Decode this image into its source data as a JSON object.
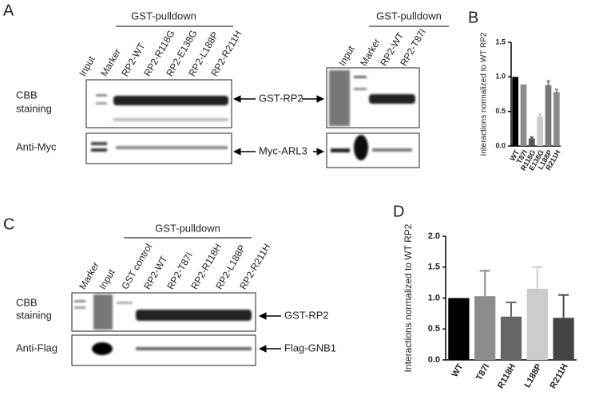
{
  "panel_a": {
    "label": "A",
    "pulldown_left": "GST-pulldown",
    "lanes_left": [
      "Input",
      "Marker",
      "RP2-WT",
      "RP2-R118G",
      "RP2-E138G",
      "RP2-L188P",
      "RP2-R211H"
    ],
    "pulldown_right": "GST-pulldown",
    "lanes_right": [
      "Input",
      "Marker",
      "RP2-WT",
      "RP2-T87I"
    ],
    "row_labels": [
      [
        "CBB",
        "staining"
      ],
      [
        "Anti-Myc"
      ]
    ],
    "band_labels": [
      "GST-RP2",
      "Myc-ARL3"
    ]
  },
  "panel_c": {
    "label": "C",
    "pulldown": "GST-pulldown",
    "lanes": [
      "Marker",
      "Input",
      "GST control",
      "RP2-WT",
      "RP2-T87I",
      "RP2-R118H",
      "RP2-L188P",
      "RP2-R211H"
    ],
    "row_labels": [
      [
        "CBB",
        "staining"
      ],
      [
        "Anti-Flag"
      ]
    ],
    "band_labels": [
      "GST-RP2",
      "Flag-GNB1"
    ]
  },
  "chart_data": [
    {
      "type": "bar",
      "title": "B",
      "y_label": "Interactions normalized to WT RP2",
      "categories": [
        "WT",
        "T87I",
        "R118G",
        "E138G",
        "L188P",
        "R211H"
      ],
      "values": [
        1.0,
        0.89,
        0.11,
        0.43,
        0.88,
        0.78
      ],
      "errors": [
        null,
        null,
        0.02,
        0.03,
        0.06,
        0.04
      ],
      "colors": [
        "#000000",
        "#8c8c8c",
        "#555555",
        "#cccccc",
        "#777777",
        "#8a8a8a"
      ],
      "ylim": [
        0,
        1.5
      ],
      "yticks": [
        {
          "value": 0,
          "label": "0.0"
        },
        {
          "value": 0.5,
          "label": "0.5"
        },
        {
          "value": 1,
          "label": "1.0"
        },
        {
          "value": 1.5,
          "label": "1.5"
        }
      ]
    },
    {
      "type": "bar",
      "title": "D",
      "y_label": "Interactions normalized to WT RP2",
      "categories": [
        "WT",
        "T87I",
        "R118H",
        "L188P",
        "R211H"
      ],
      "values": [
        1.0,
        1.03,
        0.7,
        1.15,
        0.68
      ],
      "errors": [
        null,
        0.41,
        0.23,
        0.35,
        0.37
      ],
      "colors": [
        "#000000",
        "#8c8c8c",
        "#666666",
        "#cccccc",
        "#444444"
      ],
      "ylim": [
        0,
        2
      ],
      "yticks": [
        {
          "value": 0,
          "label": "0.0"
        },
        {
          "value": 0.5,
          "label": "0.5"
        },
        {
          "value": 1,
          "label": "1.0"
        },
        {
          "value": 1.5,
          "label": "1.5"
        },
        {
          "value": 2,
          "label": "2.0"
        }
      ]
    }
  ]
}
